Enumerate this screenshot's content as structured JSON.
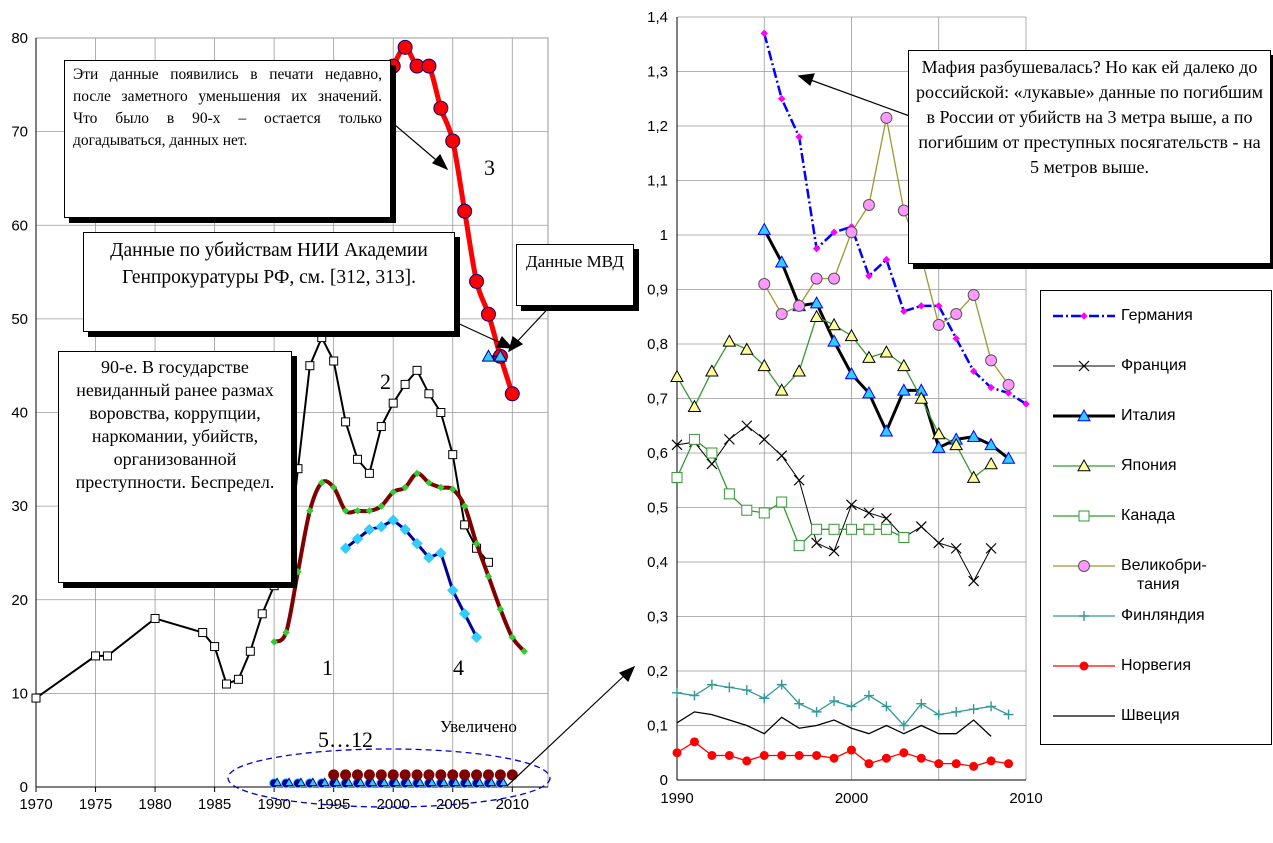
{
  "annotations": {
    "box_recent": "Эти данные появились в печати недавно, после заметного уменьшения их значений. Что было в 90-х – остается только догадываться, данных нет.",
    "box_nii": "Данные по убийствам НИИ Академии Генпрокуратуры РФ, см. [312, 313].",
    "box_90s": "90-е. В государстве невиданный ранее размах воровства, коррупции, наркомании, убийств, организованной преступности. Беспредел.",
    "box_mvd": "Данные МВД",
    "box_mafia": "Мафия разбушевалась? Но как ей далеко до российской: «лукавые» данные по погибшим в России от убийств на 3 метра выше, а по погибшим от преступных посягательств - на 5 метров выше.",
    "label_1": "1",
    "label_2": "2",
    "label_3": "3",
    "label_4": "4",
    "label_5_12": "5…12",
    "label_zoom": "Увеличено"
  },
  "colors": {
    "Германия": "#0000ff",
    "Германия_marker": "#ff00ff",
    "Франция": "#000000",
    "Италия": "#000000",
    "Италия_marker": "#33ccff",
    "Япония": "#339933",
    "Япония_marker": "#ffff99",
    "Канада": "#339933",
    "Великобритания": "#999933",
    "Великобритания_marker": "#ff99ff",
    "Финляндия": "#339999",
    "Норвегия": "#ff0000",
    "Швеция": "#000000",
    "russia_1": "#800000",
    "russia_1_marker": "#33cc33",
    "russia_2": "#000000",
    "russia_3": "#ff0000",
    "russia_4": "#000099",
    "russia_4_marker": "#33ccff"
  },
  "chart_data": [
    {
      "type": "line",
      "x_ticks": [
        1970,
        1975,
        1980,
        1985,
        1990,
        1995,
        2000,
        2005,
        2010
      ],
      "y_ticks": [
        0,
        10,
        20,
        30,
        40,
        50,
        60,
        70,
        80
      ],
      "xlim": [
        1970,
        2013
      ],
      "ylim": [
        0,
        80
      ],
      "grid": true,
      "series": [
        {
          "name": "2",
          "x": [
            1970,
            1975,
            1976,
            1980,
            1984,
            1985,
            1986,
            1987,
            1988,
            1989,
            1990,
            1991,
            1992,
            1993,
            1994,
            1995,
            1996,
            1997,
            1998,
            1999,
            2000,
            2001,
            2002,
            2003,
            2004,
            2005,
            2006,
            2007,
            2008
          ],
          "values": [
            9.5,
            14,
            14,
            18,
            16.5,
            15,
            11,
            11.5,
            14.5,
            18.5,
            21.5,
            22.5,
            34,
            45,
            48,
            45.5,
            39,
            35,
            33.5,
            38.5,
            41,
            43,
            44.5,
            42,
            40,
            35.5,
            28,
            25.5,
            24
          ]
        },
        {
          "name": "1",
          "x": [
            1990,
            1991,
            1992,
            1993,
            1994,
            1995,
            1996,
            1997,
            1998,
            1999,
            2000,
            2001,
            2002,
            2003,
            2004,
            2005,
            2006,
            2007,
            2008,
            2009,
            2010,
            2011
          ],
          "values": [
            15.5,
            16.5,
            23,
            29.5,
            32.5,
            32,
            29.5,
            29.5,
            29.5,
            30,
            31.5,
            32,
            33.5,
            32.5,
            32,
            31.8,
            30,
            26,
            22.5,
            19,
            16,
            14.5
          ]
        },
        {
          "name": "3",
          "x": [
            2000,
            2001,
            2002,
            2003,
            2004,
            2005,
            2006,
            2007,
            2008,
            2009,
            2010
          ],
          "values": [
            77,
            79,
            77,
            77,
            72.5,
            69,
            61.5,
            54,
            50.5,
            46,
            42
          ]
        },
        {
          "name": "4",
          "x": [
            1996,
            1997,
            1998,
            1999,
            2000,
            2001,
            2002,
            2003,
            2004,
            2005,
            2006,
            2007
          ],
          "values": [
            25.5,
            26.5,
            27.5,
            27.8,
            28.5,
            27.5,
            26,
            24.5,
            25,
            21,
            18.5,
            16
          ]
        },
        {
          "name": "Данные МВД",
          "x": [
            2008,
            2009
          ],
          "values": [
            46,
            46
          ]
        }
      ]
    },
    {
      "type": "line",
      "x_ticks": [
        1990,
        2000,
        2010
      ],
      "y_ticks": [
        0,
        0.1,
        0.2,
        0.3,
        0.4,
        0.5,
        0.6,
        0.7,
        0.8,
        0.9,
        1,
        1.1,
        1.2,
        1.3,
        1.4
      ],
      "y_tick_labels": [
        "0",
        "0,1",
        "0,2",
        "0,3",
        "0,4",
        "0,5",
        "0,6",
        "0,7",
        "0,8",
        "0,9",
        "1",
        "1,1",
        "1,2",
        "1,3",
        "1,4"
      ],
      "xlim": [
        1990,
        2010
      ],
      "ylim": [
        0,
        1.4
      ],
      "grid": true,
      "legend_position": "right",
      "series": [
        {
          "name": "Германия",
          "x": [
            1995,
            1996,
            1997,
            1998,
            1999,
            2000,
            2001,
            2002,
            2003,
            2004,
            2005,
            2006,
            2007,
            2008,
            2009,
            2010
          ],
          "values": [
            1.37,
            1.25,
            1.18,
            0.975,
            1.005,
            1.015,
            0.925,
            0.955,
            0.86,
            0.87,
            0.87,
            0.81,
            0.75,
            0.72,
            0.71,
            0.69
          ]
        },
        {
          "name": "Франция",
          "x": [
            1990,
            1991,
            1992,
            1993,
            1994,
            1995,
            1996,
            1997,
            1998,
            1999,
            2000,
            2001,
            2002,
            2003,
            2004,
            2005,
            2006,
            2007,
            2008
          ],
          "values": [
            0.615,
            0.62,
            0.58,
            0.625,
            0.65,
            0.625,
            0.595,
            0.55,
            0.435,
            0.42,
            0.505,
            0.49,
            0.48,
            0.445,
            0.465,
            0.435,
            0.425,
            0.365,
            0.425
          ]
        },
        {
          "name": "Италия",
          "x": [
            1995,
            1996,
            1997,
            1998,
            1999,
            2000,
            2001,
            2002,
            2003,
            2004,
            2005,
            2006,
            2007,
            2008,
            2009
          ],
          "values": [
            1.01,
            0.95,
            0.87,
            0.875,
            0.805,
            0.745,
            0.71,
            0.64,
            0.715,
            0.715,
            0.61,
            0.625,
            0.63,
            0.615,
            0.59
          ]
        },
        {
          "name": "Япония",
          "x": [
            1990,
            1991,
            1992,
            1993,
            1994,
            1995,
            1996,
            1997,
            1998,
            1999,
            2000,
            2001,
            2002,
            2003,
            2004,
            2005,
            2006,
            2007,
            2008
          ],
          "values": [
            0.74,
            0.685,
            0.75,
            0.805,
            0.79,
            0.76,
            0.715,
            0.75,
            0.85,
            0.835,
            0.815,
            0.775,
            0.785,
            0.76,
            0.7,
            0.635,
            0.615,
            0.555,
            0.58
          ]
        },
        {
          "name": "Канада",
          "x": [
            1990,
            1991,
            1992,
            1993,
            1994,
            1995,
            1996,
            1997,
            1998,
            1999,
            2000,
            2001,
            2002,
            2003
          ],
          "values": [
            0.555,
            0.625,
            0.6,
            0.525,
            0.495,
            0.49,
            0.51,
            0.43,
            0.46,
            0.46,
            0.46,
            0.46,
            0.46,
            0.445
          ]
        },
        {
          "name": "Великобритания",
          "x": [
            1995,
            1996,
            1997,
            1998,
            1999,
            2000,
            2001,
            2002,
            2003,
            2004,
            2005,
            2006,
            2007,
            2008,
            2009
          ],
          "values": [
            0.91,
            0.855,
            0.87,
            0.92,
            0.92,
            1.005,
            1.055,
            1.215,
            1.045,
            0.96,
            0.835,
            0.855,
            0.89,
            0.77,
            0.725
          ]
        },
        {
          "name": "Финляндия",
          "x": [
            1990,
            1991,
            1992,
            1993,
            1994,
            1995,
            1996,
            1997,
            1998,
            1999,
            2000,
            2001,
            2002,
            2003,
            2004,
            2005,
            2006,
            2007,
            2008,
            2009
          ],
          "values": [
            0.16,
            0.155,
            0.175,
            0.17,
            0.165,
            0.15,
            0.175,
            0.14,
            0.125,
            0.145,
            0.135,
            0.155,
            0.135,
            0.1,
            0.14,
            0.12,
            0.125,
            0.13,
            0.135,
            0.12
          ]
        },
        {
          "name": "Норвегия",
          "x": [
            1990,
            1991,
            1992,
            1993,
            1994,
            1995,
            1996,
            1997,
            1998,
            1999,
            2000,
            2001,
            2002,
            2003,
            2004,
            2005,
            2006,
            2007,
            2008,
            2009
          ],
          "values": [
            0.05,
            0.07,
            0.045,
            0.045,
            0.035,
            0.045,
            0.045,
            0.045,
            0.045,
            0.04,
            0.055,
            0.03,
            0.04,
            0.05,
            0.04,
            0.03,
            0.03,
            0.025,
            0.035,
            0.03
          ]
        },
        {
          "name": "Швеция",
          "x": [
            1990,
            1991,
            1992,
            1993,
            1994,
            1995,
            1996,
            1997,
            1998,
            1999,
            2000,
            2001,
            2002,
            2003,
            2004,
            2005,
            2006,
            2007,
            2008
          ],
          "values": [
            0.105,
            0.125,
            0.12,
            0.11,
            0.1,
            0.085,
            0.115,
            0.095,
            0.1,
            0.11,
            0.095,
            0.085,
            0.1,
            0.085,
            0.1,
            0.085,
            0.085,
            0.11,
            0.08
          ]
        }
      ],
      "legend": [
        "Германия",
        "Франция",
        "Италия",
        "Япония",
        "Канада",
        "Велико­бри-­тания",
        "Финляндия",
        "Норвегия",
        "Швеция"
      ],
      "legend_display": [
        "Германия",
        "Франция",
        "Италия",
        "Япония",
        "Канада",
        "Великобри-",
        "тания",
        "Финляндия",
        "Норвегия",
        "Швеция"
      ]
    }
  ]
}
